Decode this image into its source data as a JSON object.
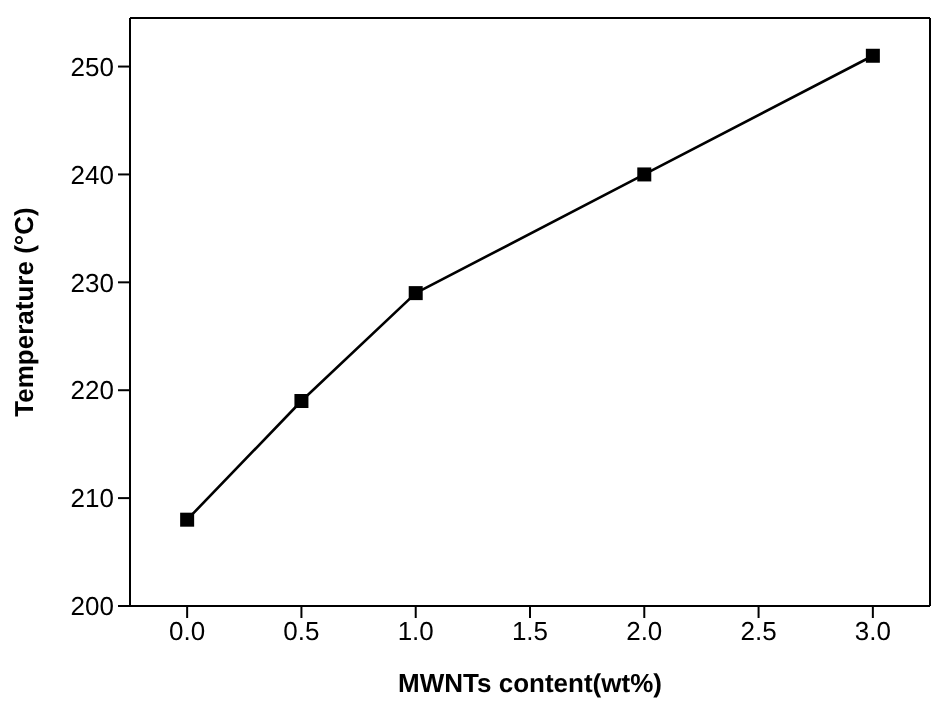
{
  "chart_data": {
    "type": "line",
    "xlabel": "MWNTs content(wt%)",
    "ylabel": "Temperature (°C)",
    "x": [
      0,
      0.5,
      1,
      2,
      3
    ],
    "series": [
      {
        "color": "#000000",
        "values": [
          208,
          219,
          229,
          240,
          251
        ]
      }
    ],
    "xlim": [
      -0.25,
      3.25
    ],
    "xticks": [
      {
        "value": 0,
        "label": "0.0"
      },
      {
        "value": 0.5,
        "label": "0.5"
      },
      {
        "value": 1,
        "label": "1.0"
      },
      {
        "value": 1.5,
        "label": "1.5"
      },
      {
        "value": 2,
        "label": "2.0"
      },
      {
        "value": 2.5,
        "label": "2.5"
      },
      {
        "value": 3,
        "label": "3.0"
      }
    ],
    "ylim": [
      200,
      254.5
    ],
    "yticks": [
      200,
      210,
      220,
      230,
      240,
      250
    ],
    "marker": "square",
    "line_style": "solid",
    "grid": false,
    "legend": false
  }
}
